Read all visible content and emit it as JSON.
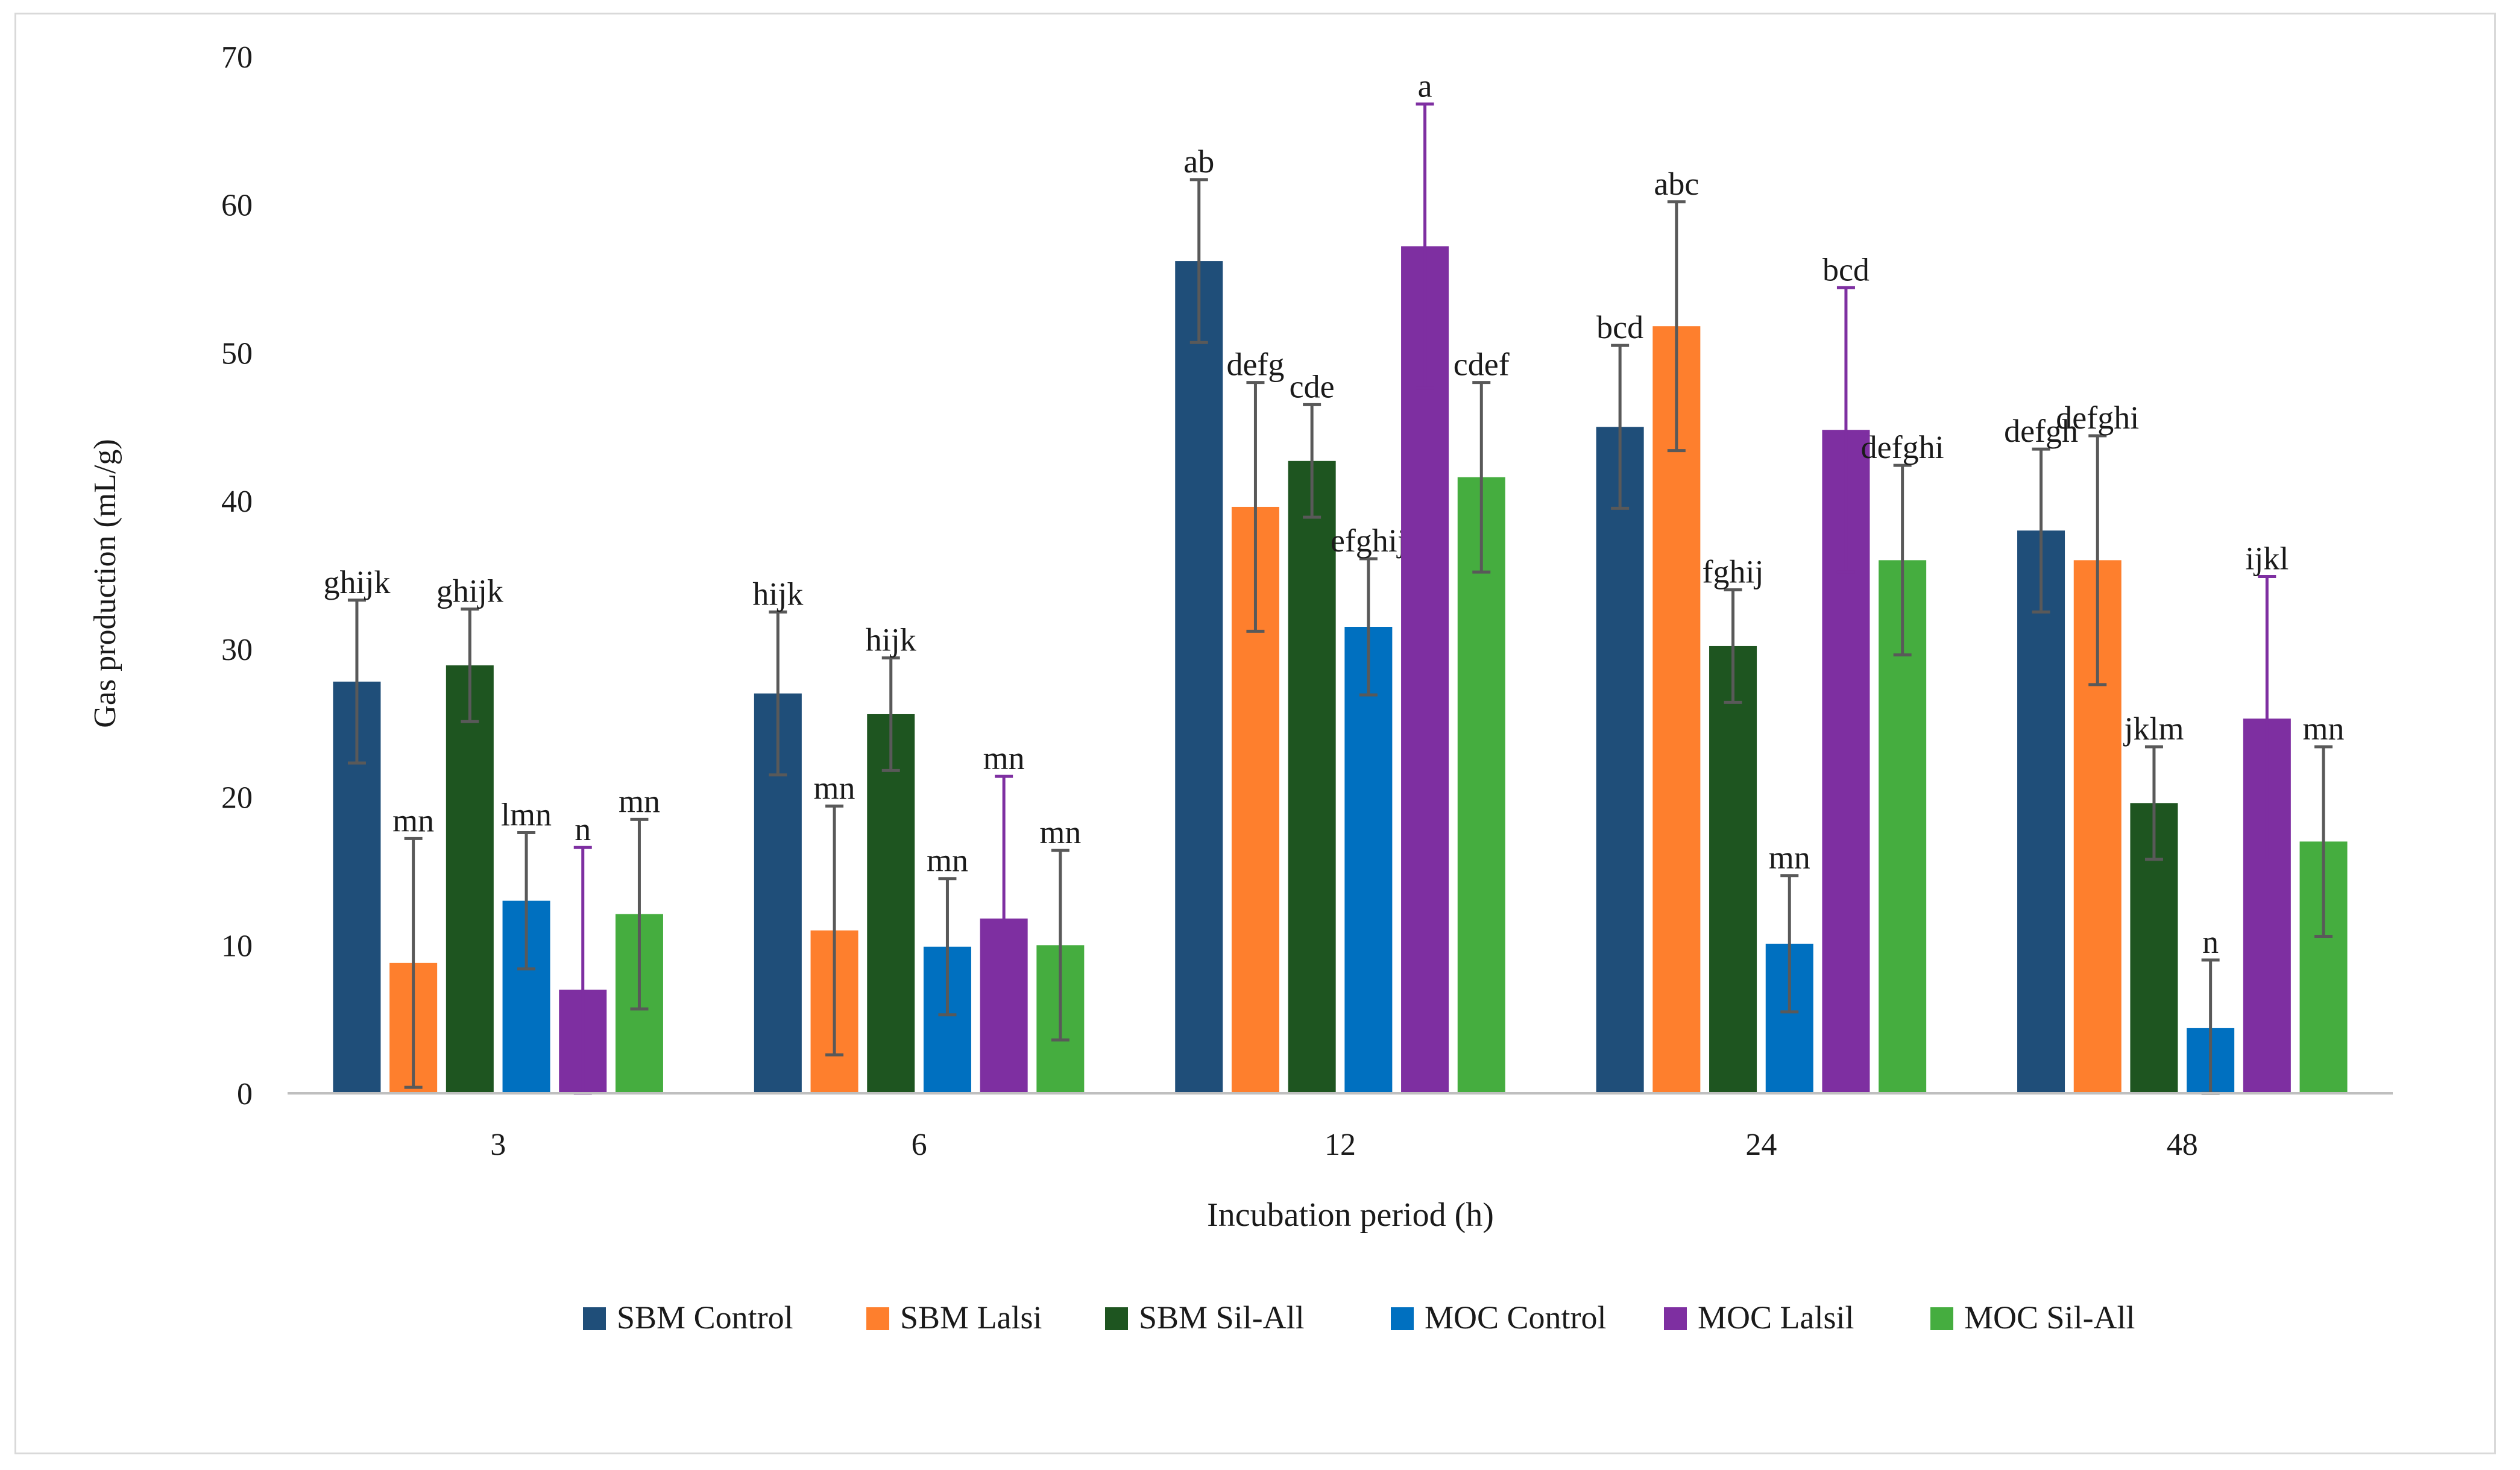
{
  "chart_data": {
    "type": "bar",
    "title": "",
    "xlabel": "Incubation period (h)",
    "ylabel": "Gas production (mL/g)",
    "ylim": [
      0,
      70
    ],
    "yticks": [
      0,
      10,
      20,
      30,
      40,
      50,
      60,
      70
    ],
    "grid": false,
    "legend_position": "bottom",
    "categories": [
      "3",
      "6",
      "12",
      "24",
      "48"
    ],
    "series": [
      {
        "name": "SBM Control",
        "color": "#1f4e79",
        "values": [
          27.8,
          27.0,
          56.2,
          45.0,
          38.0
        ],
        "errors": [
          5.5,
          5.5,
          5.5,
          5.5,
          5.5
        ],
        "labels": [
          "ghijk",
          "hijk",
          "ab",
          "bcd",
          "defgh"
        ]
      },
      {
        "name": "SBM Lalsi",
        "color": "#fe7f2d",
        "values": [
          8.8,
          11.0,
          39.6,
          51.8,
          36.0
        ],
        "errors": [
          8.4,
          8.4,
          8.4,
          8.4,
          8.4
        ],
        "labels": [
          "mn",
          "mn",
          "defg",
          "abc",
          "defghi"
        ]
      },
      {
        "name": "SBM Sil-All",
        "color": "#1e5520",
        "values": [
          28.9,
          25.6,
          42.7,
          30.2,
          19.6
        ],
        "errors": [
          3.8,
          3.8,
          3.8,
          3.8,
          3.8
        ],
        "labels": [
          "ghijk",
          "hijk",
          "cde",
          "fghij",
          "jklm"
        ]
      },
      {
        "name": "MOC Control",
        "color": "#0070c0",
        "values": [
          13.0,
          9.9,
          31.5,
          10.1,
          4.4
        ],
        "errors": [
          4.6,
          4.6,
          4.6,
          4.6,
          4.6
        ],
        "labels": [
          "lmn",
          "mn",
          "efghij",
          "mn",
          "n"
        ]
      },
      {
        "name": "MOC Lalsil",
        "color": "#7e2fa1",
        "values": [
          7.0,
          11.8,
          57.2,
          44.8,
          25.3
        ],
        "errors": [
          9.6,
          9.6,
          9.6,
          9.6,
          9.6
        ],
        "labels": [
          "n",
          "mn",
          "a",
          "bcd",
          "ijkl"
        ]
      },
      {
        "name": "MOC Sil-All",
        "color": "#45ad3f",
        "values": [
          12.1,
          10.0,
          41.6,
          36.0,
          17.0
        ],
        "errors": [
          6.4,
          6.4,
          6.4,
          6.4,
          6.4
        ],
        "labels": [
          "mn",
          "mn",
          "cdef",
          "defghi",
          "mn"
        ]
      }
    ]
  }
}
